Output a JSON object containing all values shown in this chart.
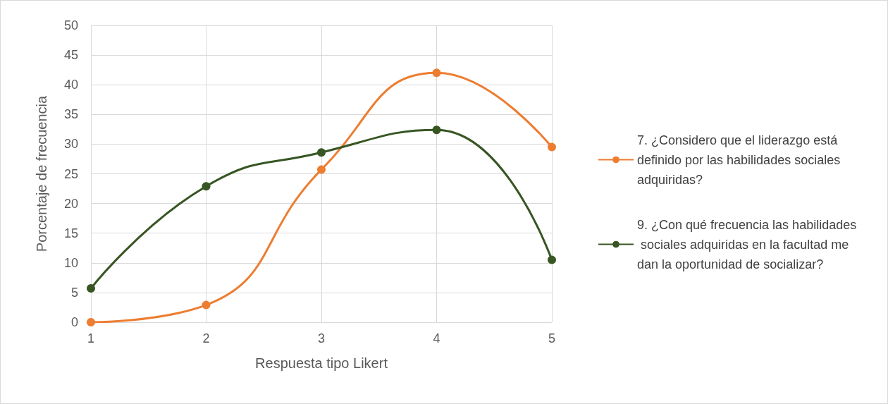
{
  "chart_data": {
    "type": "line",
    "xlabel": "Respuesta tipo Likert",
    "ylabel": "Porcentaje de frecuencia",
    "x": [
      1,
      2,
      3,
      4,
      5
    ],
    "series": [
      {
        "name": "7. ¿Considero que el liderazgo está definido por las habilidades sociales adquiridas?",
        "color": "#ed7d31",
        "values": [
          0,
          2.9,
          25.7,
          42,
          29.5
        ]
      },
      {
        "name": "9. ¿Con qué frecuencia las habilidades sociales adquiridas en la facultad me dan la oportunidad de socializar?",
        "color": "#375623",
        "values": [
          5.7,
          22.9,
          28.6,
          32.4,
          10.5
        ]
      }
    ],
    "xlim": [
      1,
      5
    ],
    "xticks": [
      1,
      2,
      3,
      4,
      5
    ],
    "ylim": [
      0,
      50
    ],
    "yticks": [
      0,
      5,
      10,
      15,
      20,
      25,
      30,
      35,
      40,
      45,
      50
    ],
    "grid": true,
    "legend": "right",
    "marker": "circle",
    "line_style": "solid"
  }
}
